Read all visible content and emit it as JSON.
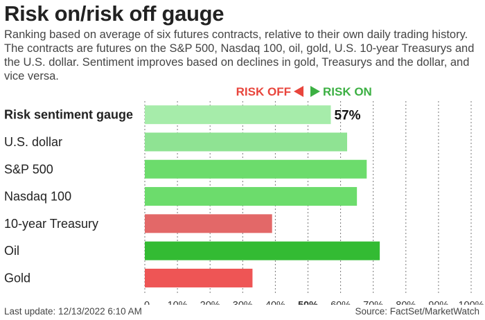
{
  "title": "Risk on/risk off gauge",
  "subtitle": "Ranking based on average of six futures contracts, relative to their own daily trading history. The contracts are futures on the S&P 500, Nasdaq 100, oil, gold, U.S. 10-year Treasurys and the U.S. dollar. Sentiment improves based on declines in gold, Treasurys and the dollar, and vice versa.",
  "direction": {
    "risk_off_label": "RISK OFF",
    "risk_on_label": "RISK ON",
    "risk_off_color": "#e8453c",
    "risk_on_color": "#3cb043"
  },
  "footer": {
    "last_update": "Last update: 12/13/2022 6:10 AM",
    "source": "Source: FactSet/MarketWatch"
  },
  "chart_data": {
    "type": "bar",
    "orientation": "horizontal",
    "categories": [
      "Risk sentiment gauge",
      "U.S. dollar",
      "S&P 500",
      "Nasdaq 100",
      "10-year Treasury",
      "Oil",
      "Gold"
    ],
    "values": [
      57,
      62,
      68,
      65,
      39,
      72,
      33
    ],
    "bar_colors": [
      "#a6ecaa",
      "#8fe393",
      "#6cdc6c",
      "#6cdc6c",
      "#e36868",
      "#33bb33",
      "#ee5555"
    ],
    "value_label": "57%",
    "xlim": [
      0,
      100
    ],
    "x_ticks": [
      "0",
      "10%",
      "20%",
      "30%",
      "40%",
      "50%",
      "60%",
      "70%",
      "80%",
      "90%",
      "100%"
    ],
    "grid": "vertical dotted",
    "bold_tick": "50%"
  }
}
